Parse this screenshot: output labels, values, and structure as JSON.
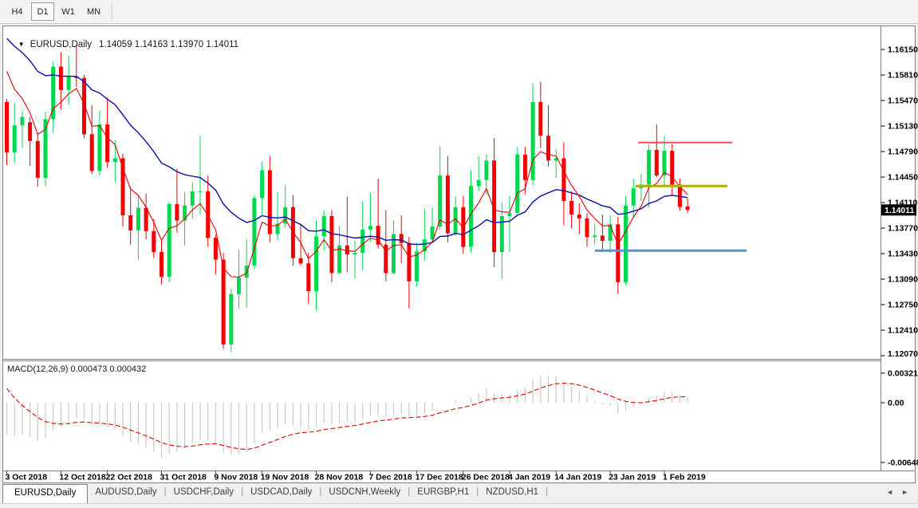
{
  "toolbar": {
    "buttons": [
      {
        "label": "H4",
        "active": false
      },
      {
        "label": "D1",
        "active": true
      },
      {
        "label": "W1",
        "active": false
      },
      {
        "label": "MN",
        "active": false
      }
    ]
  },
  "chart": {
    "title_symbol": "EURUSD,Daily",
    "title_ohlc": "1.14059 1.14163 1.13970 1.14011",
    "dropdown_icon": "▼",
    "macd_label": "MACD(12,26,9) 0.000473 0.000432"
  },
  "price_axis": {
    "tick_labels": [
      "1.16150",
      "1.15810",
      "1.15470",
      "1.15130",
      "1.14790",
      "1.14450",
      "1.14110",
      "1.13770",
      "1.13430",
      "1.13090",
      "1.12750",
      "1.12410",
      "1.12070"
    ],
    "current_price": "1.14011"
  },
  "macd_axis": {
    "tick_labels": [
      "0.003216",
      "0.00",
      "-0.006485"
    ]
  },
  "time_axis": {
    "tick_labels": [
      "3 Oct 2018",
      "12 Oct 2018",
      "22 Oct 2018",
      "31 Oct 2018",
      "9 Nov 2018",
      "19 Nov 2018",
      "28 Nov 2018",
      "7 Dec 2018",
      "17 Dec 2018",
      "26 Dec 2018",
      "4 Jan 2019",
      "14 Jan 2019",
      "23 Jan 2019",
      "1 Feb 2019"
    ],
    "tick_indices": [
      0,
      7,
      13,
      20,
      27,
      33,
      40,
      47,
      53,
      59,
      65,
      71,
      78,
      85
    ]
  },
  "tabs": {
    "items": [
      {
        "label": "EURUSD,Daily",
        "active": true
      },
      {
        "label": "AUDUSD,Daily",
        "active": false
      },
      {
        "label": "USDCHF,Daily",
        "active": false
      },
      {
        "label": "USDCAD,Daily",
        "active": false
      },
      {
        "label": "USDCNH,Weekly",
        "active": false
      },
      {
        "label": "EURGBP,H1",
        "active": false
      },
      {
        "label": "NZDUSD,H1",
        "active": false
      }
    ],
    "scroll_left_icon": "◄",
    "scroll_right_icon": "►"
  },
  "colors": {
    "bull": "#00d94f",
    "bear": "#f40000",
    "ma_fast": "#e60000",
    "ma_slow": "#0c0caa",
    "macd_hist": "#c9c9c9",
    "macd_signal": "#e00000",
    "badge_bg": "#000000",
    "badge_text": "#ffffff",
    "axis_text": "#000000",
    "frame": "#7f7f7f"
  },
  "chart_data": [
    {
      "type": "candlestick",
      "title": "EURUSD,Daily",
      "ohlc_display": {
        "open": "1.14059",
        "high": "1.14163",
        "low": "1.13970",
        "close": "1.14011"
      },
      "last_price": 1.14011,
      "ylim": [
        1.1202,
        1.1641
      ],
      "y_ticks": [
        1.1615,
        1.1581,
        1.1547,
        1.1513,
        1.1479,
        1.1445,
        1.1411,
        1.1377,
        1.1343,
        1.1309,
        1.1275,
        1.1241,
        1.1207
      ],
      "candles": [
        [
          1.1545,
          1.1549,
          1.1461,
          1.1478
        ],
        [
          1.1478,
          1.1543,
          1.1464,
          1.1514
        ],
        [
          1.1514,
          1.1533,
          1.1484,
          1.1525
        ],
        [
          1.1518,
          1.1525,
          1.146,
          1.1493
        ],
        [
          1.1493,
          1.1504,
          1.1432,
          1.1444
        ],
        [
          1.1444,
          1.1532,
          1.1433,
          1.1522
        ],
        [
          1.1522,
          1.1599,
          1.1504,
          1.1592
        ],
        [
          1.1592,
          1.1611,
          1.1535,
          1.1561
        ],
        [
          1.1561,
          1.1607,
          1.1541,
          1.1579
        ],
        [
          1.1579,
          1.1621,
          1.1565,
          1.1577
        ],
        [
          1.1577,
          1.1581,
          1.1497,
          1.1502
        ],
        [
          1.1502,
          1.1541,
          1.1449,
          1.1453
        ],
        [
          1.1453,
          1.1533,
          1.1447,
          1.1515
        ],
        [
          1.1515,
          1.1551,
          1.1457,
          1.1465
        ],
        [
          1.1465,
          1.1494,
          1.1438,
          1.147
        ],
        [
          1.147,
          1.1476,
          1.1379,
          1.1394
        ],
        [
          1.1394,
          1.1432,
          1.1355,
          1.1374
        ],
        [
          1.1374,
          1.1421,
          1.1335,
          1.1404
        ],
        [
          1.1404,
          1.1423,
          1.1362,
          1.1373
        ],
        [
          1.1373,
          1.1389,
          1.1337,
          1.1345
        ],
        [
          1.1345,
          1.136,
          1.1302,
          1.1312
        ],
        [
          1.1312,
          1.1412,
          1.1305,
          1.1409
        ],
        [
          1.1409,
          1.1456,
          1.1371,
          1.1387
        ],
        [
          1.1387,
          1.1425,
          1.1354,
          1.1407
        ],
        [
          1.1407,
          1.1438,
          1.139,
          1.1426
        ],
        [
          1.1426,
          1.15,
          1.1395,
          1.1426
        ],
        [
          1.1426,
          1.1447,
          1.1352,
          1.1364
        ],
        [
          1.1364,
          1.1368,
          1.1315,
          1.1335
        ],
        [
          1.1335,
          1.1344,
          1.1216,
          1.1222
        ],
        [
          1.1222,
          1.1296,
          1.1212,
          1.1289
        ],
        [
          1.1289,
          1.1348,
          1.127,
          1.1311
        ],
        [
          1.1311,
          1.1362,
          1.1271,
          1.1327
        ],
        [
          1.1327,
          1.1421,
          1.1322,
          1.1417
        ],
        [
          1.1417,
          1.1466,
          1.1394,
          1.1454
        ],
        [
          1.1454,
          1.1473,
          1.1358,
          1.1369
        ],
        [
          1.1369,
          1.1425,
          1.1361,
          1.1383
        ],
        [
          1.1383,
          1.1435,
          1.1378,
          1.1405
        ],
        [
          1.1405,
          1.1421,
          1.1327,
          1.1337
        ],
        [
          1.1337,
          1.1383,
          1.1327,
          1.133
        ],
        [
          1.133,
          1.1344,
          1.1276,
          1.1293
        ],
        [
          1.1293,
          1.1387,
          1.1267,
          1.1366
        ],
        [
          1.1366,
          1.1401,
          1.1347,
          1.1393
        ],
        [
          1.1393,
          1.1401,
          1.1305,
          1.1317
        ],
        [
          1.1317,
          1.138,
          1.1317,
          1.1354
        ],
        [
          1.1354,
          1.1419,
          1.1318,
          1.1342
        ],
        [
          1.1342,
          1.136,
          1.131,
          1.1344
        ],
        [
          1.1344,
          1.1413,
          1.1321,
          1.1375
        ],
        [
          1.1375,
          1.1424,
          1.1359,
          1.138
        ],
        [
          1.138,
          1.1443,
          1.135,
          1.1355
        ],
        [
          1.1355,
          1.1401,
          1.1306,
          1.1317
        ],
        [
          1.1317,
          1.1387,
          1.1315,
          1.1369
        ],
        [
          1.1369,
          1.1394,
          1.133,
          1.1357
        ],
        [
          1.1357,
          1.1365,
          1.127,
          1.1306
        ],
        [
          1.1306,
          1.1358,
          1.1299,
          1.1346
        ],
        [
          1.1346,
          1.1403,
          1.1334,
          1.1362
        ],
        [
          1.1362,
          1.1405,
          1.1356,
          1.1379
        ],
        [
          1.1379,
          1.1486,
          1.1375,
          1.1447
        ],
        [
          1.1447,
          1.1473,
          1.1358,
          1.137
        ],
        [
          1.137,
          1.1419,
          1.1366,
          1.1405
        ],
        [
          1.1405,
          1.142,
          1.1343,
          1.1352
        ],
        [
          1.1352,
          1.1454,
          1.1344,
          1.1433
        ],
        [
          1.1433,
          1.1473,
          1.1426,
          1.1441
        ],
        [
          1.1441,
          1.1475,
          1.1421,
          1.1467
        ],
        [
          1.1467,
          1.1497,
          1.1325,
          1.1345
        ],
        [
          1.1345,
          1.1412,
          1.1309,
          1.1393
        ],
        [
          1.1393,
          1.142,
          1.1345,
          1.1397
        ],
        [
          1.1397,
          1.1485,
          1.1397,
          1.1475
        ],
        [
          1.1475,
          1.1485,
          1.1422,
          1.1441
        ],
        [
          1.1441,
          1.157,
          1.1434,
          1.1545
        ],
        [
          1.1545,
          1.1572,
          1.1484,
          1.15
        ],
        [
          1.15,
          1.1541,
          1.1459,
          1.1467
        ],
        [
          1.1467,
          1.1482,
          1.1444,
          1.147
        ],
        [
          1.147,
          1.1491,
          1.1381,
          1.1413
        ],
        [
          1.1413,
          1.1426,
          1.1377,
          1.1395
        ],
        [
          1.1395,
          1.141,
          1.1369,
          1.139
        ],
        [
          1.139,
          1.1397,
          1.1352,
          1.1365
        ],
        [
          1.1365,
          1.1383,
          1.1355,
          1.1367
        ],
        [
          1.1367,
          1.1395,
          1.1345,
          1.136
        ],
        [
          1.136,
          1.1394,
          1.1344,
          1.1382
        ],
        [
          1.1382,
          1.1392,
          1.1289,
          1.1305
        ],
        [
          1.1305,
          1.142,
          1.1301,
          1.1407
        ],
        [
          1.1407,
          1.1443,
          1.139,
          1.143
        ],
        [
          1.143,
          1.1449,
          1.1413,
          1.1435
        ],
        [
          1.1435,
          1.1488,
          1.1405,
          1.1481
        ],
        [
          1.1481,
          1.1515,
          1.1445,
          1.1447
        ],
        [
          1.1447,
          1.15,
          1.1434,
          1.148
        ],
        [
          1.148,
          1.1489,
          1.142,
          1.1435
        ],
        [
          1.1435,
          1.1443,
          1.14,
          1.1405
        ],
        [
          1.14059,
          1.14163,
          1.1397,
          1.14011
        ]
      ],
      "overlays": [
        {
          "name": "ma-fast",
          "type": "ema",
          "period": 5,
          "seed": 1.164,
          "color_key": "ma_fast"
        },
        {
          "name": "ma-slow",
          "type": "ema",
          "period": 21,
          "seed": 1.1645,
          "color_key": "ma_slow"
        }
      ],
      "hlines": [
        {
          "name": "resistance-line",
          "price": 1.1491,
          "x1": 800,
          "x2": 918,
          "color": "#f05050",
          "width": 2
        },
        {
          "name": "pivot-line",
          "price": 1.1433,
          "x1": 797,
          "x2": 912,
          "color": "#abb400",
          "width": 3
        },
        {
          "name": "support-line",
          "price": 1.1347,
          "x1": 746,
          "x2": 936,
          "color": "#4f98d3",
          "width": 3
        }
      ]
    },
    {
      "type": "macd",
      "label": "MACD(12,26,9) 0.000473 0.000432",
      "params": {
        "fast": 12,
        "slow": 26,
        "signal": 9
      },
      "display_values": [
        "0.000473",
        "0.000432"
      ],
      "seeds": {
        "fast": 1.157,
        "slow": 1.16,
        "signal": 0.0028
      },
      "y_ticks": [
        0.003216,
        0.0,
        -0.006485
      ],
      "legend_position": "top-left"
    }
  ]
}
